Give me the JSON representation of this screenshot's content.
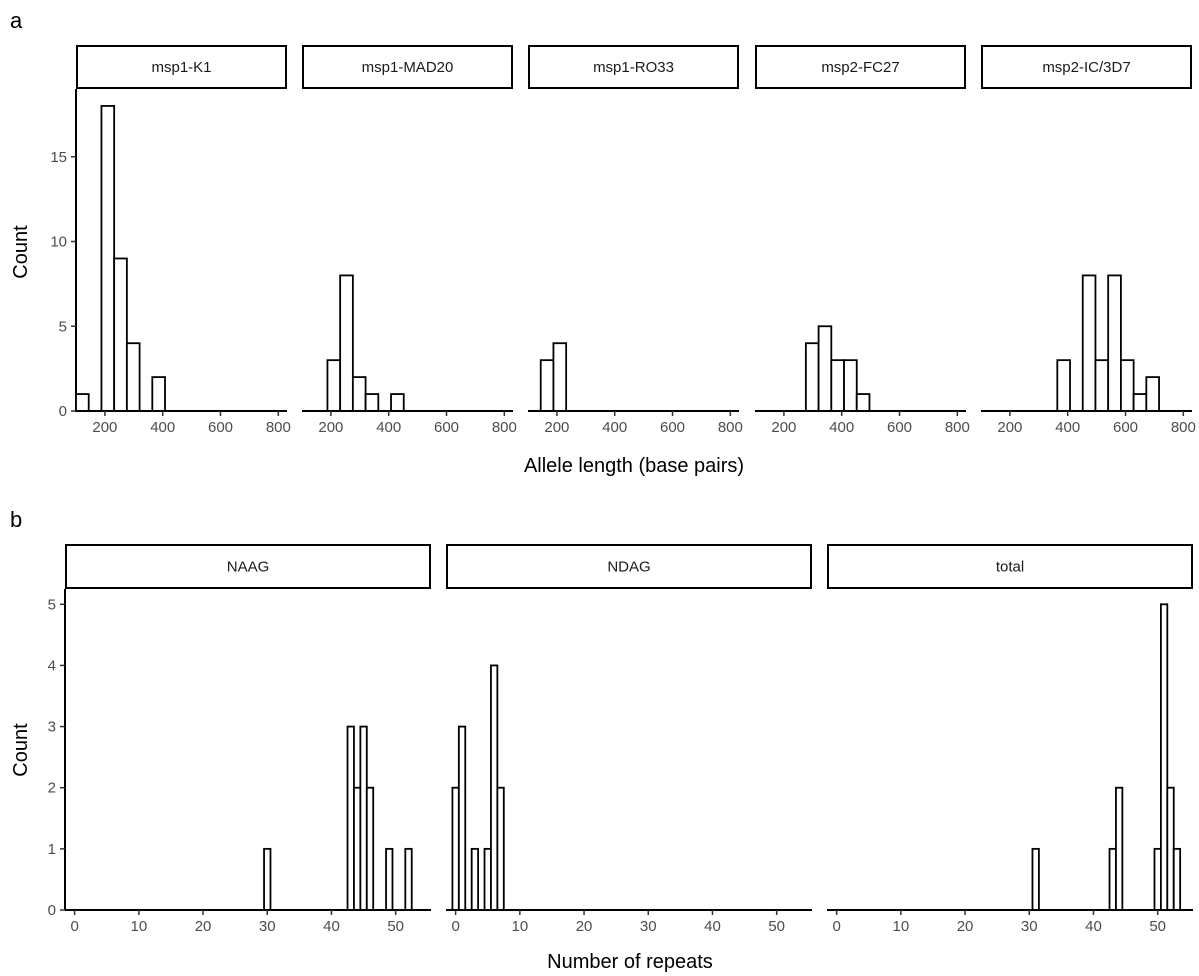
{
  "chart_data": [
    {
      "type": "bar",
      "panel_label": "a",
      "xlabel": "Allele length (base pairs)",
      "ylabel": "Count",
      "xlim": [
        100,
        830
      ],
      "ylim": [
        0,
        19
      ],
      "xticks": [
        200,
        400,
        600,
        800
      ],
      "yticks": [
        0,
        5,
        10,
        15
      ],
      "bin_width": 44,
      "facets": [
        {
          "name": "msp1-K1",
          "bins": [
            [
              122,
              1
            ],
            [
              166,
              0
            ],
            [
              210,
              18
            ],
            [
              254,
              9
            ],
            [
              298,
              4
            ],
            [
              342,
              0
            ],
            [
              386,
              2
            ],
            [
              430,
              0
            ],
            [
              474,
              0
            ],
            [
              518,
              0
            ],
            [
              562,
              0
            ],
            [
              606,
              0
            ],
            [
              650,
              0
            ],
            [
              694,
              0
            ],
            [
              738,
              0
            ],
            [
              782,
              0
            ]
          ]
        },
        {
          "name": "msp1-MAD20",
          "bins": [
            [
              122,
              0
            ],
            [
              166,
              0
            ],
            [
              210,
              3
            ],
            [
              254,
              8
            ],
            [
              298,
              2
            ],
            [
              342,
              1
            ],
            [
              386,
              0
            ],
            [
              430,
              1
            ],
            [
              474,
              0
            ],
            [
              518,
              0
            ],
            [
              562,
              0
            ],
            [
              606,
              0
            ],
            [
              650,
              0
            ],
            [
              694,
              0
            ],
            [
              738,
              0
            ],
            [
              782,
              0
            ]
          ]
        },
        {
          "name": "msp1-RO33",
          "bins": [
            [
              122,
              0
            ],
            [
              166,
              3
            ],
            [
              210,
              4
            ],
            [
              254,
              0
            ],
            [
              298,
              0
            ],
            [
              342,
              0
            ],
            [
              386,
              0
            ],
            [
              430,
              0
            ],
            [
              474,
              0
            ],
            [
              518,
              0
            ],
            [
              562,
              0
            ],
            [
              606,
              0
            ],
            [
              650,
              0
            ],
            [
              694,
              0
            ],
            [
              738,
              0
            ],
            [
              782,
              0
            ]
          ]
        },
        {
          "name": "msp2-FC27",
          "bins": [
            [
              122,
              0
            ],
            [
              166,
              0
            ],
            [
              210,
              0
            ],
            [
              254,
              0
            ],
            [
              298,
              4
            ],
            [
              342,
              5
            ],
            [
              386,
              3
            ],
            [
              430,
              3
            ],
            [
              474,
              1
            ],
            [
              518,
              0
            ],
            [
              562,
              0
            ],
            [
              606,
              0
            ],
            [
              650,
              0
            ],
            [
              694,
              0
            ],
            [
              738,
              0
            ],
            [
              782,
              0
            ]
          ]
        },
        {
          "name": "msp2-IC/3D7",
          "bins": [
            [
              122,
              0
            ],
            [
              166,
              0
            ],
            [
              210,
              0
            ],
            [
              254,
              0
            ],
            [
              298,
              0
            ],
            [
              342,
              0
            ],
            [
              386,
              3
            ],
            [
              430,
              0
            ],
            [
              474,
              8
            ],
            [
              518,
              3
            ],
            [
              562,
              8
            ],
            [
              606,
              3
            ],
            [
              650,
              1
            ],
            [
              694,
              2
            ],
            [
              738,
              0
            ],
            [
              782,
              0
            ]
          ]
        }
      ]
    },
    {
      "type": "bar",
      "panel_label": "b",
      "xlabel": "Number of repeats",
      "ylabel": "Count",
      "xlim": [
        -1.5,
        55.5
      ],
      "ylim": [
        0,
        5.25
      ],
      "xticks": [
        0,
        10,
        20,
        30,
        40,
        50
      ],
      "yticks": [
        0,
        1,
        2,
        3,
        4,
        5
      ],
      "bin_width": 1,
      "facets": [
        {
          "name": "NAAG",
          "x_start": 0,
          "x_end": 53,
          "counts": [
            [
              30,
              1
            ],
            [
              43,
              3
            ],
            [
              44,
              2
            ],
            [
              45,
              3
            ],
            [
              46,
              2
            ],
            [
              49,
              1
            ],
            [
              52,
              1
            ]
          ]
        },
        {
          "name": "NDAG",
          "x_start": 0,
          "x_end": 53,
          "counts": [
            [
              0,
              2
            ],
            [
              1,
              3
            ],
            [
              3,
              1
            ],
            [
              5,
              1
            ],
            [
              6,
              4
            ],
            [
              7,
              2
            ]
          ]
        },
        {
          "name": "total",
          "x_start": 0,
          "x_end": 53,
          "counts": [
            [
              31,
              1
            ],
            [
              43,
              1
            ],
            [
              44,
              2
            ],
            [
              50,
              1
            ],
            [
              51,
              5
            ],
            [
              52,
              2
            ],
            [
              53,
              1
            ]
          ]
        }
      ]
    }
  ]
}
